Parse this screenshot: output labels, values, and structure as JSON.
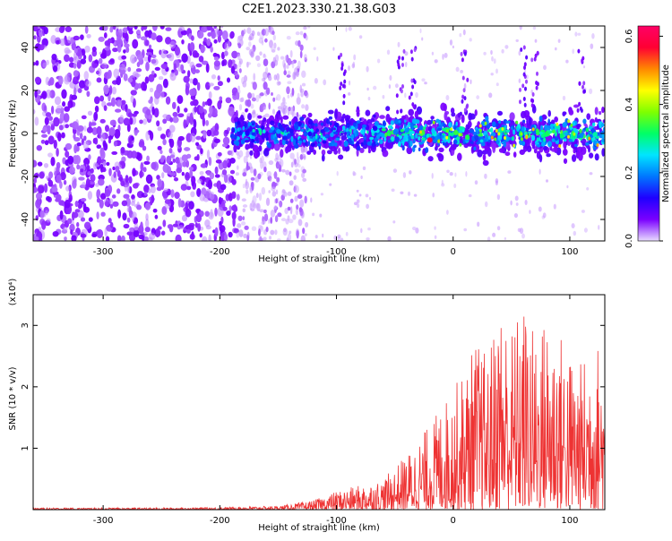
{
  "title": "C2E1.2023.330.21.38.G03",
  "chart_data": [
    {
      "type": "heatmap",
      "xlabel": "Height of straight line (km)",
      "ylabel": "Frequency (Hz)",
      "xlim": [
        -360,
        130
      ],
      "ylim": [
        -50,
        50
      ],
      "x_ticks": [
        -300,
        -200,
        -100,
        0,
        100
      ],
      "y_ticks": [
        -40,
        -20,
        0,
        20,
        40
      ],
      "colorbar": {
        "label": "Normalized spectral amplitude",
        "range": [
          0.0,
          0.63
        ],
        "ticks": [
          "0.0",
          "0.2",
          "0.4",
          "0.6"
        ],
        "colors": [
          "#e9ddff",
          "#7a00ff",
          "#1f00ff",
          "#0077ff",
          "#00e5ff",
          "#00ff66",
          "#7fff00",
          "#ffff00",
          "#ff8800",
          "#ff0033",
          "#ff0066"
        ]
      },
      "regions": [
        {
          "x_range": [
            -360,
            -185
          ],
          "freq_band": [
            -50,
            50
          ],
          "amplitude": "0.02-0.06"
        },
        {
          "x_range": [
            -185,
            -125
          ],
          "freq_band": [
            -50,
            50
          ],
          "amplitude": "0.01-0.04",
          "note_band": [
            -15,
            15
          ],
          "band_amplitude": "0.05-0.25"
        },
        {
          "x_range": [
            -125,
            130
          ],
          "freq_band": [
            -15,
            15
          ],
          "amplitude": "0.05-0.45"
        }
      ],
      "peak": {
        "x": -20,
        "freq": -3,
        "amplitude": 0.6
      }
    },
    {
      "type": "line",
      "xlabel": "Height of straight line (km)",
      "ylabel": "SNR (10 * v/v)",
      "y_multiplier": "(x10⁴)",
      "xlim": [
        -360,
        130
      ],
      "ylim": [
        0,
        3.5
      ],
      "x_ticks": [
        -300,
        -200,
        -100,
        0,
        100
      ],
      "y_ticks": [
        1,
        2,
        3
      ],
      "color": "#ee3333",
      "series": [
        {
          "x": [
            -360,
            -300,
            -250,
            -200,
            -150,
            -120,
            -100,
            -80,
            -60,
            -40,
            -20,
            -10,
            0,
            10,
            20,
            30,
            40,
            50,
            60,
            70,
            80,
            90,
            100,
            110,
            120,
            130
          ],
          "values": [
            0.03,
            0.03,
            0.03,
            0.04,
            0.06,
            0.15,
            0.3,
            0.4,
            0.5,
            0.9,
            1.4,
            1.7,
            2.0,
            2.3,
            2.8,
            2.5,
            3.5,
            3.0,
            3.4,
            2.9,
            3.2,
            3.0,
            2.6,
            2.4,
            2.9,
            2.5
          ]
        }
      ]
    }
  ]
}
